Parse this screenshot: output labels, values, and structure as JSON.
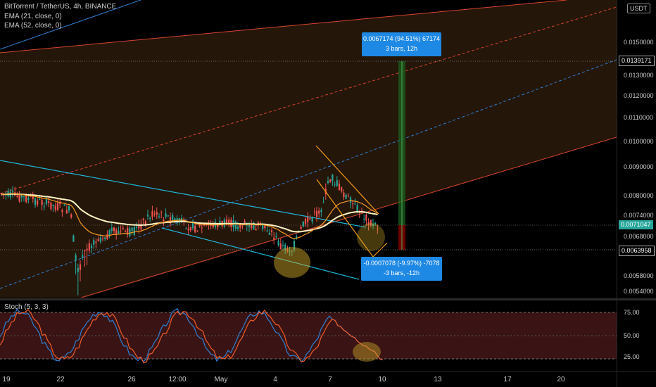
{
  "legend": {
    "symbol": "BitTorrent / TetherUS, 4h, BINANCE",
    "ema21": "EMA (21, close, 0)",
    "ema52": "EMA (52, close, 0)",
    "stoch": "Stoch (5, 3, 3)"
  },
  "currency": "USDT",
  "price_axis": [
    "0.0150000",
    "0.0130000",
    "0.0120000",
    "0.0110000",
    "0.0100000",
    "0.0090000",
    "0.0080000",
    "0.0074000",
    "0.0068000",
    "0.0058000",
    "0.0054000"
  ],
  "price_tags": {
    "target": "0.0139171",
    "last": "0.0071047",
    "stop": "0.0063958"
  },
  "stoch_axis": [
    "75.00",
    "50.00",
    "25.00"
  ],
  "time_axis": [
    "19",
    "22",
    "26",
    "12:00",
    "May",
    "4",
    "7",
    "10",
    "13",
    "17",
    "20"
  ],
  "tooltips": {
    "up_line1": "0.0067174 (94.51%) 67174",
    "up_line2": "3 bars, 12h",
    "down_line1": "-0.0007078 (-9.97%) -7078",
    "down_line2": "-3 bars, -12h"
  },
  "colors": {
    "ema21": "#f59a23",
    "ema52": "#fff3c0",
    "up_candle": "#26a69a",
    "down_candle": "#ef5350",
    "channel_red": "#d9442f",
    "channel_blue": "#2f7fd1",
    "cyan": "#1fb6d6",
    "stoch_k": "#2f7fd1",
    "stoch_d": "#f05a28",
    "tag_blue": "#1e88e5",
    "tag_red": "#e53935"
  }
}
